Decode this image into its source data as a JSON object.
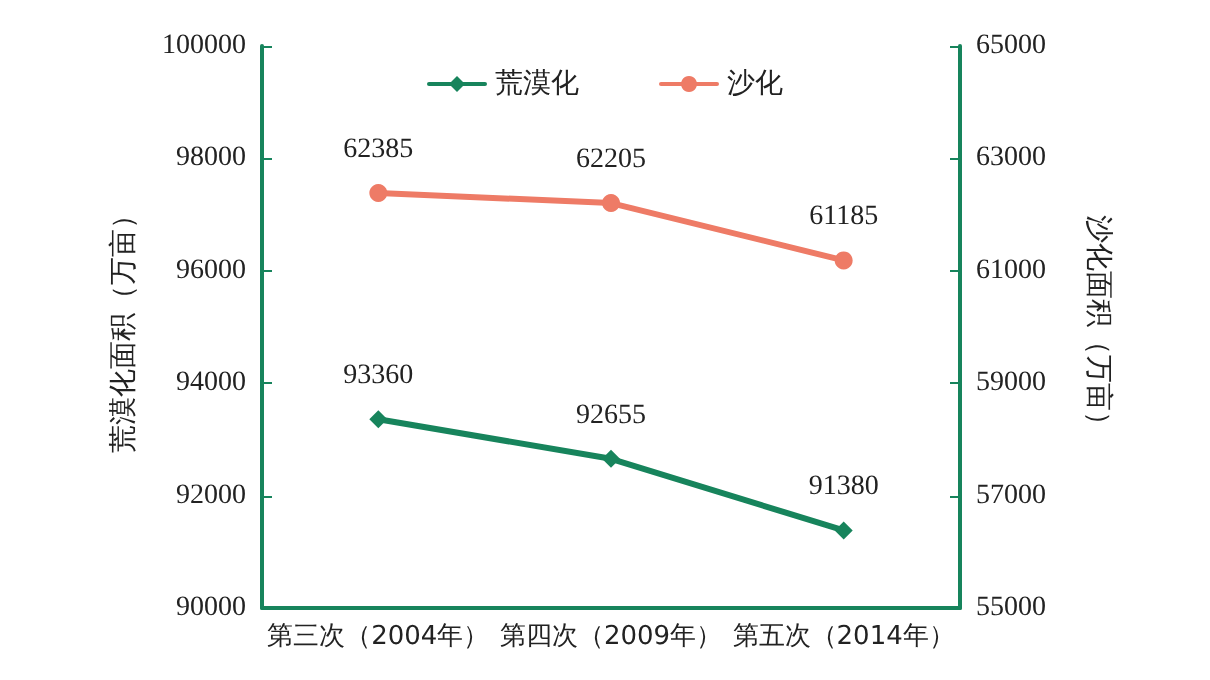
{
  "chart_data": {
    "type": "line",
    "categories": [
      "第三次（2004年）",
      "第四次（2009年）",
      "第五次（2014年）"
    ],
    "ylabel": "荒漠化面积（万亩）",
    "y2label": "沙化面积（万亩）",
    "ylim": [
      90000,
      100000
    ],
    "yticks": [
      90000,
      92000,
      94000,
      96000,
      98000,
      100000
    ],
    "y2lim": [
      55000,
      65000
    ],
    "y2ticks": [
      55000,
      57000,
      59000,
      61000,
      63000,
      65000
    ],
    "series": [
      {
        "name": "荒漠化",
        "color": "#17845c",
        "values": [
          93360,
          92655,
          91380
        ],
        "marker": "diamond"
      },
      {
        "name": "沙化",
        "color": "#ee7b66",
        "values": [
          62385,
          62205,
          61185
        ],
        "axis": "y2",
        "marker": "circle"
      }
    ],
    "data_labels": true,
    "legend": "top",
    "grid": false
  }
}
